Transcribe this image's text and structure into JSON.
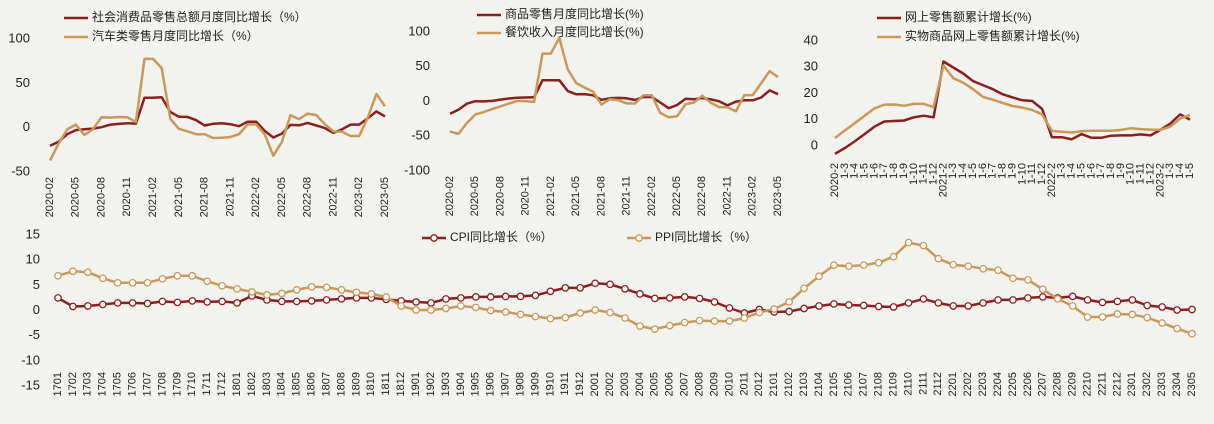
{
  "chart_data": [
    {
      "type": "line",
      "categories": [
        "2020-02",
        null,
        null,
        "2020-05",
        null,
        null,
        "2020-08",
        null,
        null,
        "2020-11",
        null,
        null,
        "2021-02",
        null,
        null,
        "2021-05",
        null,
        null,
        "2021-08",
        null,
        null,
        "2021-11",
        null,
        null,
        "2022-02",
        null,
        null,
        "2022-05",
        null,
        null,
        "2022-08",
        null,
        null,
        "2022-11",
        null,
        null,
        "2023-02",
        null,
        null,
        "2023-05"
      ],
      "ylim": [
        -50,
        100
      ],
      "yticks": [
        -50,
        0,
        50,
        100
      ],
      "series": [
        {
          "name": "社会消费品零售总额月度同比增长（%）",
          "color": "#8b1f1f",
          "values": [
            -20.5,
            -15.8,
            -7.5,
            -2.8,
            -1.8,
            -1.1,
            0.5,
            3.3,
            4.3,
            5.0,
            4.6,
            33.8,
            33.8,
            34.2,
            17.7,
            12.4,
            12.1,
            8.5,
            2.5,
            4.4,
            4.9,
            3.9,
            1.7,
            6.7,
            6.7,
            -3.5,
            -11.1,
            -6.7,
            3.1,
            2.7,
            5.4,
            2.5,
            -0.5,
            -5.9,
            -1.8,
            3.5,
            3.5,
            10.6,
            18.4,
            12.7
          ]
        },
        {
          "name": "汽车类零售月度同比增长（%）",
          "color": "#c8995a",
          "values": [
            -37,
            -18,
            -2,
            3.5,
            -8.2,
            -1.8,
            11.8,
            11.3,
            12,
            11.8,
            6.4,
            77.6,
            77.6,
            67.2,
            10.1,
            -1.3,
            -4.1,
            -7.4,
            -7.4,
            -11.6,
            -11.4,
            -10.5,
            -7.4,
            3.7,
            3.7,
            -7.5,
            -31.6,
            -16,
            13.9,
            9.7,
            15.9,
            14.2,
            3.9,
            -4.2,
            -4.6,
            -9.4,
            -9.4,
            11.5,
            38,
            24.2
          ]
        }
      ]
    },
    {
      "type": "line",
      "categories": [
        "2020-02",
        null,
        null,
        "2020-05",
        null,
        null,
        "2020-08",
        null,
        null,
        "2020-11",
        null,
        null,
        "2021-02",
        null,
        null,
        "2021-05",
        null,
        null,
        "2021-08",
        null,
        null,
        "2021-11",
        null,
        null,
        "2022-02",
        null,
        null,
        "2022-05",
        null,
        null,
        "2022-08",
        null,
        null,
        "2022-11",
        null,
        null,
        "2023-02",
        null,
        null,
        "2023-05"
      ],
      "ylim": [
        -100,
        100
      ],
      "yticks": [
        -100,
        -50,
        0,
        50,
        100
      ],
      "series": [
        {
          "name": "商品零售月度同比增长(%)",
          "color": "#8b1f1f",
          "values": [
            -17.6,
            -12,
            -3.1,
            0.5,
            0.2,
            0.9,
            2.8,
            4.3,
            5.5,
            5.8,
            6.0,
            30.7,
            30.7,
            30.7,
            15.1,
            10.3,
            10.7,
            8.9,
            2.5,
            4.6,
            5.2,
            4.6,
            2.1,
            6.5,
            6.5,
            -1.5,
            -9.7,
            -5,
            3.9,
            3.2,
            5.1,
            3.0,
            0.5,
            -5.6,
            -0.1,
            1.7,
            1.7,
            5.7,
            15.9,
            10.5
          ]
        },
        {
          "name": "餐饮收入月度同比增长(%)",
          "color": "#c8995a",
          "values": [
            -43,
            -46.8,
            -31.1,
            -18.9,
            -15.2,
            -11,
            -7,
            -2.9,
            0.8,
            0.6,
            -0.6,
            68.9,
            68.9,
            91.6,
            46.4,
            26.6,
            20,
            14.3,
            -4.5,
            3.1,
            2,
            -2.7,
            -2.9,
            8.9,
            8.9,
            -16.4,
            -22.7,
            -21.1,
            -4,
            -1.5,
            8.4,
            -1.7,
            -8.1,
            -8.4,
            -14.1,
            9.2,
            9.2,
            26.3,
            43.8,
            35.1
          ]
        }
      ]
    },
    {
      "type": "line",
      "categories": [
        "2020-2",
        "1-3",
        "1-4",
        "1-5",
        "1-6",
        "1-7",
        "1-8",
        "1-9",
        "1-10",
        "1-11",
        "1-12",
        "2021-2",
        "1-3",
        "1-4",
        "1-5",
        "1-6",
        "1-7",
        "1-8",
        "1-9",
        "1-10",
        "1-11",
        "1-12",
        "2022-2",
        "1-3",
        "1-4",
        "1-5",
        "1-6",
        "1-7",
        "1-8",
        "1-9",
        "1-10",
        "1-11",
        "1-12",
        "2023-2",
        "1-3",
        "1-4",
        "1-5"
      ],
      "ylim": [
        -5,
        40
      ],
      "yticks": [
        0,
        10,
        20,
        30,
        40
      ],
      "series": [
        {
          "name": "网上零售额累计增长(%)",
          "color": "#8b1f1f",
          "values": [
            -3,
            -0.8,
            1.7,
            4.5,
            7.3,
            9.3,
            9.5,
            9.7,
            10.9,
            11.5,
            10.9,
            32.2,
            29.9,
            27.6,
            24.7,
            23.2,
            21.6,
            19.7,
            18.5,
            17.4,
            17.1,
            14.1,
            3.3,
            3.3,
            2.5,
            4.5,
            3.1,
            3.1,
            3.9,
            4.0,
            4.0,
            4.4,
            4.0,
            6.1,
            8.5,
            12,
            10
          ]
        },
        {
          "name": "实物商品网上零售额累计增长(%)",
          "color": "#c8995a",
          "values": [
            3,
            5.9,
            8.6,
            11.5,
            14.3,
            15.7,
            15.8,
            15.3,
            16,
            16,
            14.8,
            30.6,
            25.8,
            24.1,
            21.6,
            18.7,
            17.6,
            16.4,
            15.2,
            14.6,
            13.7,
            12,
            5.7,
            5.4,
            5.1,
            5.6,
            5.8,
            5.8,
            5.8,
            6.1,
            6.7,
            6.4,
            6.2,
            6.1,
            7.3,
            10.4,
            11.8
          ]
        }
      ]
    },
    {
      "type": "line",
      "markers": true,
      "categories": [
        "1701",
        "1702",
        "1703",
        "1704",
        "1705",
        "1706",
        "1707",
        "1708",
        "1709",
        "1710",
        "1711",
        "1712",
        "1801",
        "1802",
        "1803",
        "1804",
        "1805",
        "1806",
        "1807",
        "1808",
        "1809",
        "1810",
        "1811",
        "1812",
        "1901",
        "1902",
        "1903",
        "1904",
        "1905",
        "1906",
        "1907",
        "1908",
        "1909",
        "1910",
        "1911",
        "1912",
        "2001",
        "2002",
        "2003",
        "2004",
        "2005",
        "2006",
        "2007",
        "2008",
        "2009",
        "2010",
        "2011",
        "2012",
        "2101",
        "2102",
        "2103",
        "2104",
        "2105",
        "2106",
        "2107",
        "2108",
        "2109",
        "2110",
        "2111",
        "2112",
        "2201",
        "2202",
        "2203",
        "2204",
        "2205",
        "2206",
        "2207",
        "2208",
        "2209",
        "2210",
        "2211",
        "2212",
        "2301",
        "2302",
        "2303",
        "2304",
        "2305"
      ],
      "ylim": [
        -15,
        15
      ],
      "yticks": [
        -15,
        -10,
        -5,
        0,
        5,
        10,
        15
      ],
      "series": [
        {
          "name": "CPI同比增长（%）",
          "color": "#8b1f1f",
          "values": [
            2.5,
            0.8,
            0.9,
            1.2,
            1.5,
            1.5,
            1.4,
            1.8,
            1.6,
            1.9,
            1.7,
            1.8,
            1.5,
            2.9,
            2.1,
            1.8,
            1.8,
            1.9,
            2.1,
            2.3,
            2.5,
            2.5,
            2.2,
            1.9,
            1.7,
            1.5,
            2.3,
            2.5,
            2.7,
            2.7,
            2.8,
            2.8,
            3.0,
            3.8,
            4.5,
            4.5,
            5.4,
            5.2,
            4.3,
            3.3,
            2.4,
            2.5,
            2.7,
            2.4,
            1.7,
            0.5,
            -0.5,
            0.2,
            -0.3,
            -0.2,
            0.4,
            0.9,
            1.3,
            1.1,
            1.0,
            0.8,
            0.7,
            1.5,
            2.3,
            1.5,
            0.9,
            0.9,
            1.5,
            2.1,
            2.1,
            2.5,
            2.7,
            2.5,
            2.8,
            2.1,
            1.6,
            1.8,
            2.1,
            1.0,
            0.7,
            0.1,
            0.2
          ]
        },
        {
          "name": "PPI同比增长（%）",
          "color": "#c8995a",
          "values": [
            6.9,
            7.8,
            7.6,
            6.4,
            5.5,
            5.5,
            5.5,
            6.3,
            6.9,
            6.9,
            5.8,
            4.9,
            4.3,
            3.7,
            3.1,
            3.4,
            4.1,
            4.7,
            4.6,
            4.1,
            3.6,
            3.3,
            2.7,
            0.9,
            0.1,
            0.1,
            0.4,
            0.9,
            0.6,
            0,
            -0.3,
            -0.8,
            -1.2,
            -1.6,
            -1.4,
            -0.5,
            0.1,
            -0.4,
            -1.5,
            -3.1,
            -3.7,
            -3.0,
            -2.4,
            -2.0,
            -2.1,
            -2.1,
            -1.5,
            -0.4,
            0.3,
            1.7,
            4.4,
            6.8,
            9.0,
            8.8,
            9.0,
            9.5,
            10.7,
            13.5,
            12.9,
            10.3,
            9.1,
            8.8,
            8.3,
            8.0,
            6.4,
            6.1,
            4.2,
            2.3,
            0.9,
            -1.3,
            -1.3,
            -0.7,
            -0.8,
            -1.4,
            -2.5,
            -3.6,
            -4.6
          ]
        }
      ]
    }
  ]
}
